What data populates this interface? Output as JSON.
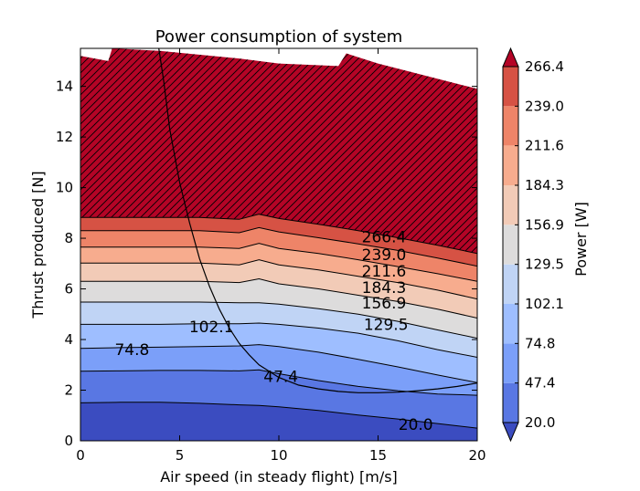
{
  "chart_data": {
    "type": "contour",
    "title": "Power consumption of system",
    "xlabel": "Air speed (in steady flight) [m/s]",
    "ylabel": "Thrust produced [N]",
    "colorbar_label": "Power [W]",
    "xlim": [
      0,
      20
    ],
    "ylim": [
      0,
      15.5
    ],
    "x_ticks": [
      0,
      5,
      10,
      15,
      20
    ],
    "y_ticks": [
      0,
      2,
      4,
      6,
      8,
      10,
      12,
      14
    ],
    "levels": [
      20.0,
      47.4,
      74.8,
      102.1,
      129.5,
      156.9,
      184.3,
      211.6,
      239.0,
      266.4
    ],
    "level_labels": [
      "20.0",
      "47.4",
      "74.8",
      "102.1",
      "129.5",
      "156.9",
      "184.3",
      "211.6",
      "239.0",
      "266.4"
    ],
    "band_colors": [
      "#3b4cc0",
      "#5977e3",
      "#7b9ff9",
      "#9ebeff",
      "#c0d4f5",
      "#dddcdc",
      "#f2cbb7",
      "#f7ac8e",
      "#ee8468",
      "#d65244",
      "#b40426"
    ],
    "colorbar_extend": "both",
    "over_color": "#b40426",
    "under_color": "#3b4cc0",
    "hatched_region": "power above 266.4 W",
    "contour_x": [
      0,
      2,
      4,
      6,
      8,
      9,
      10,
      12,
      14,
      16,
      18,
      20
    ],
    "contour_lines": [
      {
        "level": "20.0",
        "y": [
          1.5,
          1.52,
          1.52,
          1.48,
          1.42,
          1.4,
          1.34,
          1.2,
          1.02,
          0.86,
          0.68,
          0.5
        ]
      },
      {
        "level": "47.4",
        "y": [
          2.75,
          2.76,
          2.78,
          2.78,
          2.76,
          2.8,
          2.65,
          2.38,
          2.15,
          1.98,
          1.85,
          1.8
        ]
      },
      {
        "level": "74.8",
        "y": [
          3.65,
          3.68,
          3.7,
          3.72,
          3.75,
          3.8,
          3.72,
          3.5,
          3.22,
          2.92,
          2.6,
          2.3
        ]
      },
      {
        "level": "102.1",
        "y": [
          4.6,
          4.6,
          4.6,
          4.62,
          4.62,
          4.65,
          4.6,
          4.45,
          4.25,
          3.95,
          3.6,
          3.3
        ]
      },
      {
        "level": "129.5",
        "y": [
          5.48,
          5.48,
          5.48,
          5.48,
          5.45,
          5.45,
          5.4,
          5.22,
          5.0,
          4.72,
          4.38,
          4.05
        ]
      },
      {
        "level": "156.9",
        "y": [
          6.3,
          6.3,
          6.3,
          6.3,
          6.25,
          6.4,
          6.2,
          6.0,
          5.75,
          5.5,
          5.2,
          4.85
        ]
      },
      {
        "level": "184.3",
        "y": [
          7.02,
          7.02,
          7.02,
          7.02,
          6.95,
          7.15,
          6.95,
          6.75,
          6.5,
          6.25,
          5.95,
          5.6
        ]
      },
      {
        "level": "211.6",
        "y": [
          7.65,
          7.65,
          7.65,
          7.65,
          7.6,
          7.8,
          7.6,
          7.4,
          7.15,
          6.88,
          6.6,
          6.3
        ]
      },
      {
        "level": "239.0",
        "y": [
          8.3,
          8.3,
          8.3,
          8.3,
          8.22,
          8.42,
          8.25,
          8.02,
          7.78,
          7.52,
          7.22,
          6.9
        ]
      },
      {
        "level": "266.4",
        "y": [
          8.82,
          8.82,
          8.82,
          8.82,
          8.75,
          8.95,
          8.78,
          8.55,
          8.3,
          8.02,
          7.72,
          7.4
        ]
      }
    ],
    "upper_boundary": {
      "x": [
        0,
        1.4,
        1.6,
        4,
        8,
        10,
        13,
        13.4,
        15,
        17,
        20
      ],
      "y": [
        15.2,
        15.0,
        15.5,
        15.4,
        15.1,
        14.9,
        14.8,
        15.3,
        14.9,
        14.5,
        13.9
      ]
    },
    "feasibility_curve": {
      "x": [
        3.95,
        4.2,
        4.5,
        5,
        5.5,
        6,
        6.5,
        7,
        7.5,
        8,
        8.5,
        9,
        10,
        11,
        12,
        13,
        14,
        15,
        16,
        17,
        18,
        19,
        20
      ],
      "y": [
        15.5,
        14.2,
        12.3,
        10.2,
        8.6,
        7.2,
        6.1,
        5.2,
        4.45,
        3.85,
        3.4,
        3.0,
        2.5,
        2.2,
        2.05,
        1.95,
        1.9,
        1.9,
        1.92,
        1.98,
        2.05,
        2.15,
        2.28
      ]
    },
    "inline_label_positions": [
      {
        "level": "20.0",
        "x": 16.9,
        "y": 0.65
      },
      {
        "level": "47.4",
        "x": 10.1,
        "y": 2.55
      },
      {
        "level": "74.8",
        "x": 2.6,
        "y": 3.6
      },
      {
        "level": "102.1",
        "x": 6.6,
        "y": 4.5
      },
      {
        "level": "129.5",
        "x": 15.4,
        "y": 4.6
      },
      {
        "level": "156.9",
        "x": 15.3,
        "y": 5.45
      },
      {
        "level": "184.3",
        "x": 15.3,
        "y": 6.05
      },
      {
        "level": "211.6",
        "x": 15.3,
        "y": 6.7
      },
      {
        "level": "239.0",
        "x": 15.3,
        "y": 7.35
      },
      {
        "level": "266.4",
        "x": 15.3,
        "y": 8.05
      }
    ]
  }
}
